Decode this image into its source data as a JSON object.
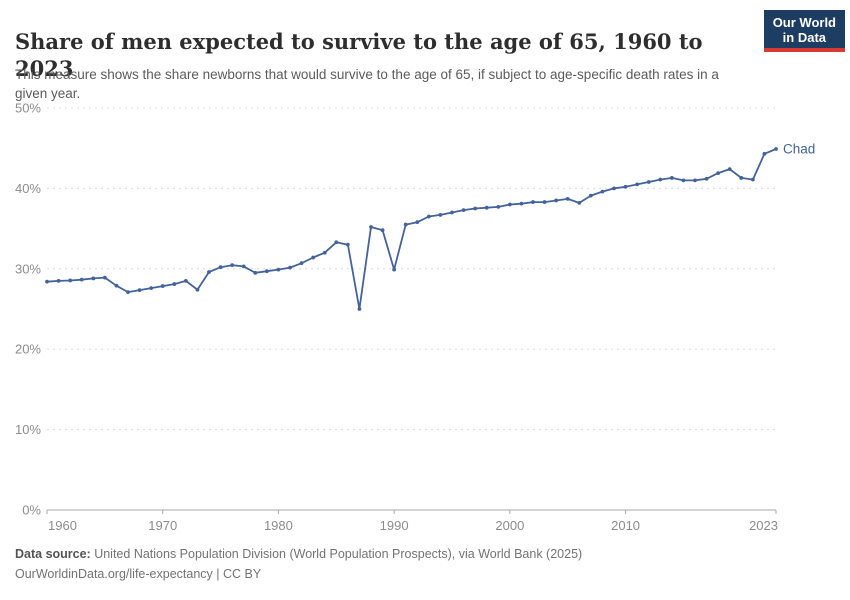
{
  "header": {
    "title": "Share of men expected to survive to the age of 65, 1960 to 2023",
    "subtitle": "This measure shows the share newborns that would survive to the age of 65, if subject to age-specific death rates in a given year.",
    "logo": {
      "line1": "Our World",
      "line2": "in Data",
      "bg_color": "#1d3d63",
      "accent_color": "#d73a34"
    }
  },
  "chart_data": {
    "type": "line",
    "title": "Share of men expected to survive to the age of 65, 1960 to 2023",
    "xlabel": "",
    "ylabel": "",
    "xlim": [
      1960,
      2023
    ],
    "ylim": [
      0,
      50
    ],
    "grid": "horizontal-dashed",
    "legend_position": "end-of-line-label",
    "x_ticks": [
      1960,
      1970,
      1980,
      1990,
      2000,
      2010,
      2023
    ],
    "y_ticks": [
      {
        "value": 0,
        "label": "0%"
      },
      {
        "value": 10,
        "label": "10%"
      },
      {
        "value": 20,
        "label": "20%"
      },
      {
        "value": 30,
        "label": "30%"
      },
      {
        "value": 40,
        "label": "40%"
      },
      {
        "value": 50,
        "label": "50%"
      }
    ],
    "series": [
      {
        "name": "Chad",
        "color": "#44639b",
        "x": [
          1960,
          1961,
          1962,
          1963,
          1964,
          1965,
          1966,
          1967,
          1968,
          1969,
          1970,
          1971,
          1972,
          1973,
          1974,
          1975,
          1976,
          1977,
          1978,
          1979,
          1980,
          1981,
          1982,
          1983,
          1984,
          1985,
          1986,
          1987,
          1988,
          1989,
          1990,
          1991,
          1992,
          1993,
          1994,
          1995,
          1996,
          1997,
          1998,
          1999,
          2000,
          2001,
          2002,
          2003,
          2004,
          2005,
          2006,
          2007,
          2008,
          2009,
          2010,
          2011,
          2012,
          2013,
          2014,
          2015,
          2016,
          2017,
          2018,
          2019,
          2020,
          2021,
          2022,
          2023
        ],
        "values": [
          28.4,
          28.5,
          28.55,
          28.65,
          28.8,
          28.9,
          27.9,
          27.1,
          27.35,
          27.6,
          27.85,
          28.1,
          28.5,
          27.4,
          29.6,
          30.2,
          30.45,
          30.3,
          29.5,
          29.7,
          29.9,
          30.15,
          30.7,
          31.4,
          32.0,
          33.3,
          33.0,
          25.0,
          35.2,
          34.8,
          29.9,
          35.5,
          35.8,
          36.5,
          36.7,
          37.0,
          37.3,
          37.5,
          37.6,
          37.7,
          38.0,
          38.1,
          38.3,
          38.3,
          38.5,
          38.7,
          38.2,
          39.1,
          39.6,
          40.0,
          40.2,
          40.5,
          40.8,
          41.1,
          41.3,
          41.0,
          41.0,
          41.2,
          41.9,
          42.4,
          41.3,
          41.1,
          44.3,
          44.9
        ]
      }
    ],
    "colors": {
      "gridline": "#dcdcdc",
      "axis_line": "#a8a8a8",
      "tick_label": "#8c8c8c"
    }
  },
  "footer": {
    "source_label": "Data source:",
    "source_text": " United Nations Population Division (World Population Prospects), via World Bank (2025)",
    "link": "OurWorldinData.org/life-expectancy",
    "separator": " | ",
    "license": "CC BY"
  }
}
